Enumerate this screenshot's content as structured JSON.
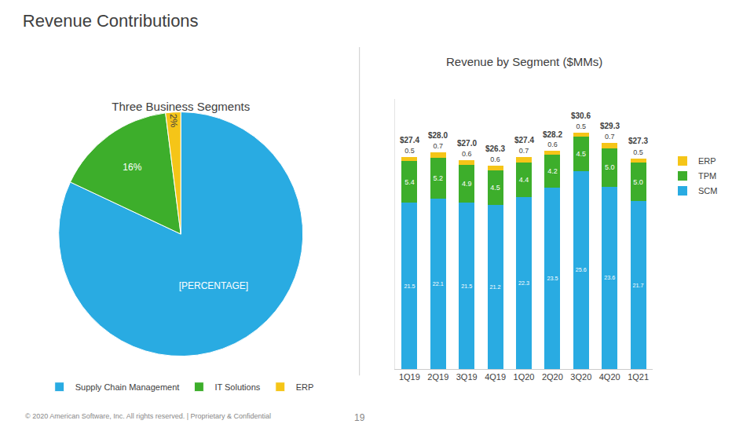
{
  "title": "Revenue Contributions",
  "annotations": [
    "© 2020 American Software, Inc. All rights reserved. | Proprietary & Confidential",
    "19"
  ],
  "chart_data": [
    {
      "type": "pie",
      "title": "Three Business Segments",
      "categories": [
        "Supply Chain Management",
        "IT Solutions",
        "ERP"
      ],
      "values": [
        82,
        16,
        2
      ],
      "value_labels": [
        "[PERCENTAGE]",
        "16%",
        "2%"
      ],
      "colors": [
        "#29ABE2",
        "#3DAE2B",
        "#F5C518"
      ],
      "data_labels": true,
      "legend": "bottom"
    },
    {
      "type": "bar",
      "title": "Revenue by Segment ($MMs)",
      "categories": [
        "1Q19",
        "2Q19",
        "3Q19",
        "4Q19",
        "1Q20",
        "2Q20",
        "3Q20",
        "4Q20",
        "1Q21"
      ],
      "series": [
        {
          "name": "SCM",
          "color": "#29ABE2",
          "values": [
            21.5,
            22.1,
            21.5,
            21.2,
            22.3,
            23.5,
            25.6,
            23.6,
            21.7
          ]
        },
        {
          "name": "TPM",
          "color": "#3DAE2B",
          "values": [
            5.4,
            5.2,
            4.9,
            4.5,
            4.4,
            4.2,
            4.5,
            5.0,
            5.0
          ],
          "value_labels": [
            "5.4",
            "5.2",
            "4.9",
            "4.5",
            "4.4",
            "4.2",
            "4.5",
            "5.0",
            "5.0"
          ]
        },
        {
          "name": "ERP",
          "color": "#F5C518",
          "values": [
            0.5,
            0.7,
            0.6,
            0.6,
            0.7,
            0.6,
            0.5,
            0.7,
            0.5
          ]
        }
      ],
      "totals": [
        27.4,
        28.0,
        27.0,
        26.3,
        27.4,
        28.2,
        30.6,
        29.3,
        27.3
      ],
      "total_labels": [
        "$27.4",
        "$28.0",
        "$27.0",
        "$26.3",
        "$27.4",
        "$28.2",
        "$30.6",
        "$29.3",
        "$27.3"
      ],
      "stacked": true,
      "data_labels": true,
      "ylim": [
        0,
        35
      ],
      "grid": false,
      "legend": "right",
      "tick_labels": "x"
    }
  ]
}
